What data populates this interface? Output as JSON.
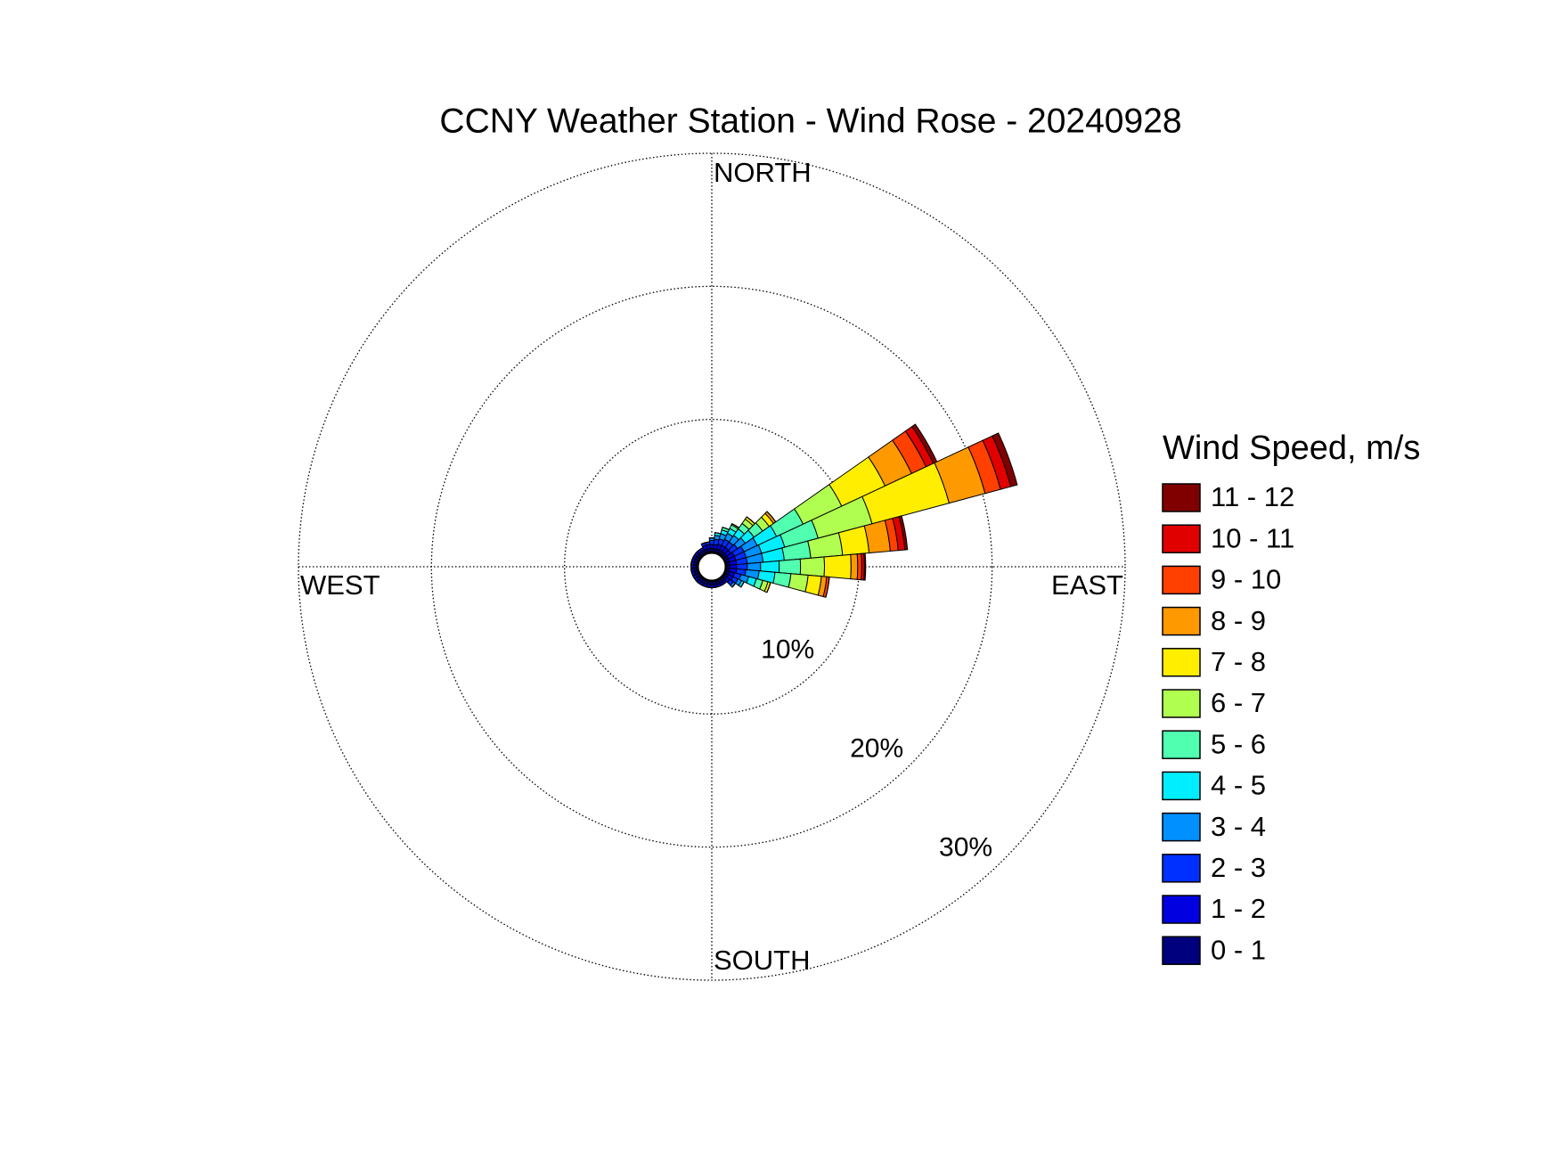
{
  "chart_data": {
    "type": "windrose",
    "title": "CCNY Weather Station - Wind Rose - 20240928",
    "compass_labels": {
      "north": "NORTH",
      "east": "EAST",
      "south": "SOUTH",
      "west": "WEST"
    },
    "legend_title": "Wind Speed, m/s",
    "directions": [
      0,
      10,
      20,
      30,
      40,
      50,
      60,
      70,
      80,
      90,
      100,
      110,
      120,
      130,
      140,
      150,
      160,
      170,
      180,
      190,
      200,
      210,
      220,
      230,
      240,
      250,
      260,
      270,
      280,
      290,
      300,
      310,
      320,
      330,
      340,
      350
    ],
    "rlim": [
      0,
      30
    ],
    "rticks": [
      {
        "value": 10,
        "label": "10%"
      },
      {
        "value": 20,
        "label": "20%"
      },
      {
        "value": 30,
        "label": "30%"
      }
    ],
    "grid": true,
    "series": [
      {
        "name": "0 - 1",
        "color": "#00007f",
        "values": [
          0.3,
          0.3,
          0.3,
          0.3,
          0.3,
          0.3,
          0.3,
          0.3,
          0.3,
          0.3,
          0.3,
          0.3,
          0.3,
          0.3,
          0.3,
          0.3,
          0.3,
          0.3,
          0.3,
          0.3,
          0.3,
          0.3,
          0.3,
          0.3,
          0.3,
          0.3,
          0.3,
          0.3,
          0.3,
          0.3,
          0.3,
          0.3,
          0.3,
          0.3,
          0.3,
          0.3
        ]
      },
      {
        "name": "1 - 2",
        "color": "#0000e0",
        "values": [
          0.3,
          0.3,
          0.4,
          0.4,
          0.4,
          0.4,
          0.5,
          0.5,
          0.5,
          0.5,
          0.5,
          0.4,
          0.4,
          0.3,
          0.2,
          0.2,
          0.2,
          0.2,
          0.2,
          0.2,
          0.2,
          0.2,
          0.2,
          0.2,
          0.2,
          0.2,
          0.2,
          0.2,
          0.2,
          0.2,
          0.2,
          0.2,
          0.2,
          0.2,
          0.3,
          0.3
        ]
      },
      {
        "name": "2 - 3",
        "color": "#0030ff",
        "values": [
          0.3,
          0.4,
          0.4,
          0.5,
          0.5,
          0.6,
          0.8,
          0.8,
          0.8,
          0.8,
          0.7,
          0.5,
          0.4,
          0.3,
          0,
          0,
          0,
          0,
          0,
          0,
          0,
          0,
          0,
          0,
          0,
          0,
          0,
          0,
          0,
          0,
          0,
          0,
          0,
          0,
          0.2,
          0.2
        ]
      },
      {
        "name": "3 - 4",
        "color": "#0090ff",
        "values": [
          0.2,
          0.3,
          0.4,
          0.5,
          0.6,
          0.7,
          1.1,
          1.2,
          1.2,
          1.0,
          1.0,
          0.6,
          0.3,
          0.2,
          0,
          0,
          0,
          0,
          0,
          0,
          0,
          0,
          0,
          0,
          0,
          0,
          0,
          0,
          0,
          0,
          0,
          0,
          0,
          0,
          0,
          0
        ]
      },
      {
        "name": "4 - 5",
        "color": "#00eeff",
        "values": [
          0,
          0.2,
          0.3,
          0.4,
          0.6,
          0.8,
          1.6,
          1.8,
          1.6,
          1.4,
          1.2,
          0.6,
          0.2,
          0,
          0,
          0,
          0,
          0,
          0,
          0,
          0,
          0,
          0,
          0,
          0,
          0,
          0,
          0,
          0,
          0,
          0,
          0,
          0,
          0,
          0,
          0
        ]
      },
      {
        "name": "5 - 6",
        "color": "#50ffb0",
        "values": [
          0,
          0,
          0.2,
          0.3,
          0.5,
          0.8,
          2.2,
          2.6,
          2.0,
          1.6,
          1.2,
          0.5,
          0,
          0,
          0,
          0,
          0,
          0,
          0,
          0,
          0,
          0,
          0,
          0,
          0,
          0,
          0,
          0,
          0,
          0,
          0,
          0,
          0,
          0,
          0,
          0
        ]
      },
      {
        "name": "6 - 7",
        "color": "#b0ff50",
        "values": [
          0,
          0,
          0,
          0.1,
          0.4,
          0.6,
          3.2,
          4.2,
          2.4,
          1.8,
          1.3,
          0.4,
          0,
          0,
          0,
          0,
          0,
          0,
          0,
          0,
          0,
          0,
          0,
          0,
          0,
          0,
          0,
          0,
          0,
          0,
          0,
          0,
          0,
          0,
          0,
          0
        ]
      },
      {
        "name": "7 - 8",
        "color": "#ffee00",
        "values": [
          0,
          0,
          0,
          0,
          0.2,
          0.4,
          3.6,
          6.0,
          2.0,
          2.0,
          1.0,
          0.2,
          0,
          0,
          0,
          0,
          0,
          0,
          0,
          0,
          0,
          0,
          0,
          0,
          0,
          0,
          0,
          0,
          0,
          0,
          0,
          0,
          0,
          0,
          0,
          0
        ]
      },
      {
        "name": "8 - 9",
        "color": "#ff9900",
        "values": [
          0,
          0,
          0,
          0,
          0,
          0.2,
          2.2,
          2.8,
          1.6,
          0.5,
          0.4,
          0,
          0,
          0,
          0,
          0,
          0,
          0,
          0,
          0,
          0,
          0,
          0,
          0,
          0,
          0,
          0,
          0,
          0,
          0,
          0,
          0,
          0,
          0,
          0,
          0
        ]
      },
      {
        "name": "9 - 10",
        "color": "#ff4000",
        "values": [
          0,
          0,
          0,
          0,
          0,
          0,
          1.2,
          1.2,
          0.6,
          0.3,
          0.2,
          0,
          0,
          0,
          0,
          0,
          0,
          0,
          0,
          0,
          0,
          0,
          0,
          0,
          0,
          0,
          0,
          0,
          0,
          0,
          0,
          0,
          0,
          0,
          0,
          0
        ]
      },
      {
        "name": "10 - 11",
        "color": "#e00000",
        "values": [
          0,
          0,
          0,
          0,
          0,
          0,
          0.6,
          0.8,
          0.5,
          0.2,
          0,
          0,
          0,
          0,
          0,
          0,
          0,
          0,
          0,
          0,
          0,
          0,
          0,
          0,
          0,
          0,
          0,
          0,
          0,
          0,
          0,
          0,
          0,
          0,
          0,
          0
        ]
      },
      {
        "name": "11 - 12",
        "color": "#800000",
        "values": [
          0,
          0,
          0,
          0,
          0,
          0,
          0.3,
          0.5,
          0.2,
          0.1,
          0,
          0,
          0,
          0,
          0,
          0,
          0,
          0,
          0,
          0,
          0,
          0,
          0,
          0,
          0,
          0,
          0,
          0,
          0,
          0,
          0,
          0,
          0,
          0,
          0,
          0
        ]
      }
    ]
  }
}
